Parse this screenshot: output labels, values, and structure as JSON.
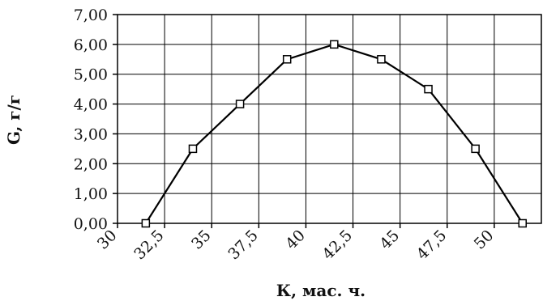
{
  "chart_data": {
    "type": "line",
    "xlabel": "К, мас. ч.",
    "ylabel": "G, г/г",
    "xlim": [
      30,
      52.5
    ],
    "ylim": [
      0,
      7
    ],
    "x_ticks": [
      30,
      32.5,
      35,
      37.5,
      40,
      42.5,
      45,
      47.5,
      50
    ],
    "x_tick_labels": [
      "30",
      "32,5",
      "35",
      "37,5",
      "40",
      "42,5",
      "45",
      "47,5",
      "50"
    ],
    "y_ticks": [
      0,
      1,
      2,
      3,
      4,
      5,
      6,
      7
    ],
    "y_tick_labels": [
      "0,00",
      "1,00",
      "2,00",
      "3,00",
      "4,00",
      "5,00",
      "6,00",
      "7,00"
    ],
    "grid": true,
    "series": [
      {
        "x": [
          31.5,
          34,
          36.5,
          39,
          41.5,
          44,
          46.5,
          49,
          51.5
        ],
        "y": [
          0,
          2.5,
          4,
          5.5,
          6,
          5.5,
          4.5,
          2.5,
          0
        ],
        "color": "#000000",
        "marker": "hollow-square"
      }
    ]
  }
}
